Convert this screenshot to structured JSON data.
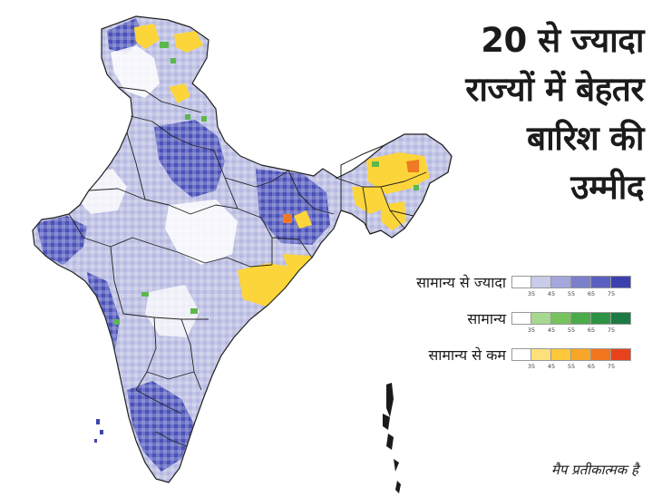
{
  "headline": {
    "lines": [
      "20 से ज्यादा",
      "राज्यों में बेहतर",
      "बारिश की",
      "उम्मीद"
    ]
  },
  "legend": {
    "rows": [
      {
        "label": "सामान्य से ज्यादा",
        "colors": [
          "#ffffff",
          "#c9cbe8",
          "#a3a7dc",
          "#7b80cc",
          "#5a60bf",
          "#3a41ae"
        ],
        "ticks": [
          "35",
          "45",
          "55",
          "65",
          "75"
        ]
      },
      {
        "label": "सामान्य",
        "colors": [
          "#ffffff",
          "#a7d88f",
          "#77c35e",
          "#4aab49",
          "#2e9245",
          "#1c7a44"
        ],
        "ticks": [
          "35",
          "45",
          "55",
          "65",
          "75"
        ]
      },
      {
        "label": "सामान्य से कम",
        "colors": [
          "#ffffff",
          "#fde07a",
          "#fcc83a",
          "#f7a628",
          "#f2751f",
          "#e8421c"
        ],
        "ticks": [
          "35",
          "45",
          "55",
          "65",
          "75"
        ]
      }
    ]
  },
  "caption": "मैप प्रतीकात्मक है",
  "map": {
    "colors": {
      "above_normal_light": "#c5c7e6",
      "above_normal_mid": "#8a8fd2",
      "above_normal_dark": "#3e45b0",
      "normal_green": "#5cb84d",
      "below_normal_yellow": "#fcd53a",
      "below_normal_orange": "#f07a23",
      "boundary": "#222222"
    }
  }
}
